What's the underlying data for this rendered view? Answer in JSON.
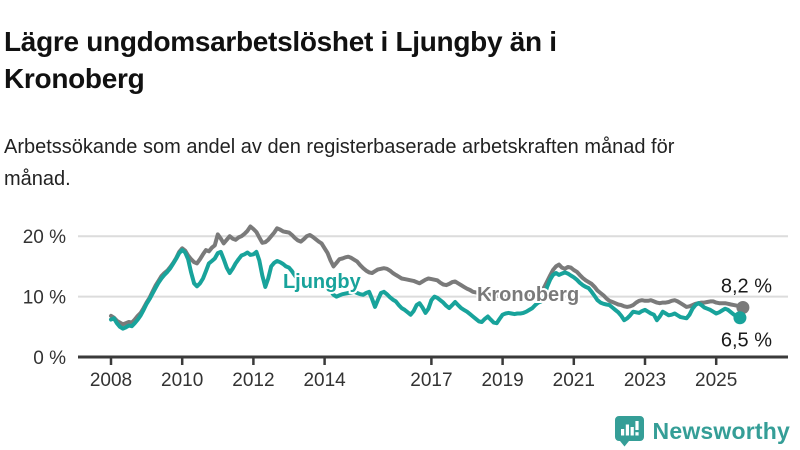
{
  "header": {
    "title": "Lägre ungdomsarbetslöshet i Ljungby än i Kronoberg",
    "subtitle": "Arbetssökande som andel av den registerbaserade arbetskraften månad för månad."
  },
  "footer": {
    "brand": "Newsworthy",
    "logo_icon": "bar-chart-speech-bubble-icon"
  },
  "colors": {
    "ljungby": "#18A39B",
    "kronoberg": "#7A7A7A",
    "grid": "#DCDCDC",
    "axis": "#3A3A3A",
    "tick_text": "#333333",
    "annotation_text": "#1A1A1A",
    "brand_teal": "#359E97"
  },
  "chart_data": {
    "type": "line",
    "title": "Lägre ungdomsarbetslöshet i Ljungby än i Kronoberg",
    "subtitle": "Arbetssökande som andel av den registerbaserade arbetskraften månad för månad.",
    "unit": "%",
    "x_start": 2008,
    "points_per_year": 12,
    "x_end_approx": 2025.75,
    "ylim": [
      0,
      23
    ],
    "grid": "horizontal",
    "yticks": [
      {
        "value": 0,
        "label": "0 %"
      },
      {
        "value": 10,
        "label": "10 %"
      },
      {
        "value": 20,
        "label": "20 %"
      }
    ],
    "xticks": [
      {
        "value": 2008,
        "label": "2008"
      },
      {
        "value": 2010,
        "label": "2010"
      },
      {
        "value": 2012,
        "label": "2012"
      },
      {
        "value": 2014,
        "label": "2014"
      },
      {
        "value": 2017,
        "label": "2017"
      },
      {
        "value": 2019,
        "label": "2019"
      },
      {
        "value": 2021,
        "label": "2021"
      },
      {
        "value": 2023,
        "label": "2023"
      },
      {
        "value": 2025,
        "label": "2025"
      }
    ],
    "legend_position": "inline-labels",
    "series": [
      {
        "name": "Kronoberg",
        "color": "#7A7A7A",
        "end_label": "8,2 %",
        "end_value": 8.2,
        "label_at": {
          "x": 2018.28,
          "y": 9.3
        },
        "values": [
          6.8,
          6.5,
          6.0,
          5.7,
          5.4,
          5.6,
          5.8,
          5.7,
          6.2,
          6.8,
          7.3,
          8.1,
          9.0,
          9.8,
          10.8,
          11.8,
          12.6,
          13.4,
          13.9,
          14.3,
          14.9,
          15.6,
          16.4,
          17.4,
          18.0,
          17.6,
          16.8,
          16.2,
          15.7,
          15.5,
          16.2,
          17.0,
          17.7,
          17.5,
          18.1,
          18.5,
          20.3,
          19.6,
          18.8,
          19.4,
          20.0,
          19.6,
          19.4,
          19.8,
          20.0,
          20.4,
          20.9,
          21.6,
          21.2,
          20.7,
          19.8,
          18.9,
          19.0,
          19.4,
          20.0,
          20.6,
          21.3,
          21.1,
          20.8,
          20.7,
          20.6,
          20.2,
          19.7,
          19.3,
          19.1,
          19.5,
          20.0,
          20.2,
          19.9,
          19.5,
          19.1,
          18.8,
          18.0,
          17.2,
          16.0,
          15.0,
          15.6,
          16.2,
          16.3,
          16.5,
          16.6,
          16.4,
          16.1,
          15.8,
          15.2,
          14.7,
          14.3,
          14.0,
          13.9,
          14.2,
          14.5,
          14.6,
          14.7,
          14.6,
          14.3,
          13.9,
          13.6,
          13.3,
          13.0,
          12.9,
          12.8,
          12.7,
          12.6,
          12.4,
          12.2,
          12.5,
          12.8,
          13.0,
          12.9,
          12.8,
          12.7,
          12.3,
          12.0,
          11.9,
          12.1,
          12.4,
          12.5,
          12.2,
          11.9,
          11.6,
          11.3,
          11.1,
          10.8,
          10.7,
          10.6,
          10.5,
          10.4,
          10.3,
          10.3,
          10.2,
          10.1,
          10.1,
          10.0,
          10.0,
          10.0,
          10.0,
          10.1,
          10.1,
          10.2,
          10.2,
          10.3,
          10.4,
          10.5,
          10.6,
          10.8,
          11.0,
          11.5,
          12.5,
          13.5,
          14.4,
          15.0,
          15.3,
          14.8,
          14.6,
          14.9,
          14.8,
          14.4,
          14.1,
          13.6,
          13.1,
          12.7,
          12.4,
          12.1,
          11.6,
          11.0,
          10.6,
          10.2,
          9.7,
          9.3,
          9.1,
          8.9,
          8.7,
          8.6,
          8.4,
          8.3,
          8.4,
          8.6,
          9.0,
          9.3,
          9.4,
          9.3,
          9.3,
          9.4,
          9.2,
          9.0,
          8.9,
          9.0,
          9.0,
          9.1,
          9.3,
          9.4,
          9.2,
          8.9,
          8.6,
          8.3,
          8.4,
          8.6,
          8.8,
          8.9,
          9.0,
          9.0,
          9.1,
          9.2,
          9.2,
          9.0,
          8.9,
          8.9,
          8.9,
          8.8,
          8.7,
          8.6,
          8.5,
          8.3,
          8.2
        ]
      },
      {
        "name": "Ljungby",
        "color": "#18A39B",
        "end_label": "6,5 %",
        "end_value": 6.5,
        "label_at": {
          "x": 2012.83,
          "y": 11.4
        },
        "values": [
          6.2,
          6.4,
          5.6,
          5.0,
          4.7,
          4.9,
          5.2,
          5.1,
          5.6,
          6.2,
          6.9,
          7.8,
          8.8,
          9.6,
          10.5,
          11.4,
          12.3,
          13.0,
          13.6,
          14.1,
          14.7,
          15.5,
          16.3,
          17.2,
          17.7,
          17.3,
          16.2,
          14.0,
          12.2,
          11.7,
          12.2,
          13.0,
          14.2,
          15.5,
          15.9,
          16.3,
          17.2,
          17.4,
          16.2,
          14.8,
          13.9,
          14.6,
          15.5,
          16.2,
          16.8,
          17.0,
          17.3,
          16.9,
          17.0,
          17.4,
          16.0,
          13.5,
          11.6,
          13.0,
          15.0,
          15.6,
          15.9,
          15.7,
          15.4,
          15.0,
          14.8,
          14.2,
          13.5,
          12.8,
          12.2,
          12.6,
          13.0,
          12.8,
          12.4,
          12.0,
          11.7,
          11.5,
          11.4,
          11.7,
          11.0,
          10.3,
          10.0,
          10.2,
          10.4,
          10.5,
          10.6,
          10.7,
          10.8,
          10.6,
          10.4,
          10.3,
          10.6,
          10.8,
          9.6,
          8.3,
          9.5,
          10.6,
          10.8,
          10.4,
          9.9,
          9.5,
          9.2,
          8.6,
          8.1,
          7.8,
          7.4,
          7.0,
          7.6,
          8.6,
          8.9,
          8.2,
          7.3,
          8.0,
          9.4,
          10.0,
          9.8,
          9.4,
          9.0,
          8.5,
          8.1,
          8.6,
          9.1,
          8.6,
          8.1,
          7.8,
          7.5,
          7.1,
          6.7,
          6.3,
          5.9,
          5.8,
          6.3,
          6.7,
          6.2,
          5.7,
          5.6,
          6.3,
          7.0,
          7.2,
          7.3,
          7.2,
          7.1,
          7.2,
          7.2,
          7.3,
          7.5,
          7.8,
          8.1,
          8.6,
          9.0,
          9.2,
          10.0,
          11.6,
          12.8,
          13.6,
          13.9,
          13.6,
          13.8,
          14.0,
          13.8,
          13.5,
          13.2,
          12.8,
          12.3,
          11.9,
          11.6,
          11.4,
          10.8,
          10.1,
          9.4,
          9.0,
          8.8,
          8.7,
          8.6,
          8.2,
          7.8,
          7.4,
          6.8,
          6.1,
          6.4,
          6.9,
          7.5,
          7.4,
          7.3,
          7.6,
          7.8,
          7.5,
          7.2,
          7.0,
          6.1,
          6.7,
          7.5,
          7.2,
          6.9,
          7.0,
          7.2,
          6.9,
          6.6,
          6.5,
          6.4,
          7.0,
          8.0,
          8.6,
          8.9,
          8.6,
          8.2,
          8.0,
          7.8,
          7.5,
          7.2,
          7.4,
          7.7,
          8.0,
          7.8,
          7.4,
          7.0,
          6.7,
          6.5
        ]
      }
    ]
  }
}
